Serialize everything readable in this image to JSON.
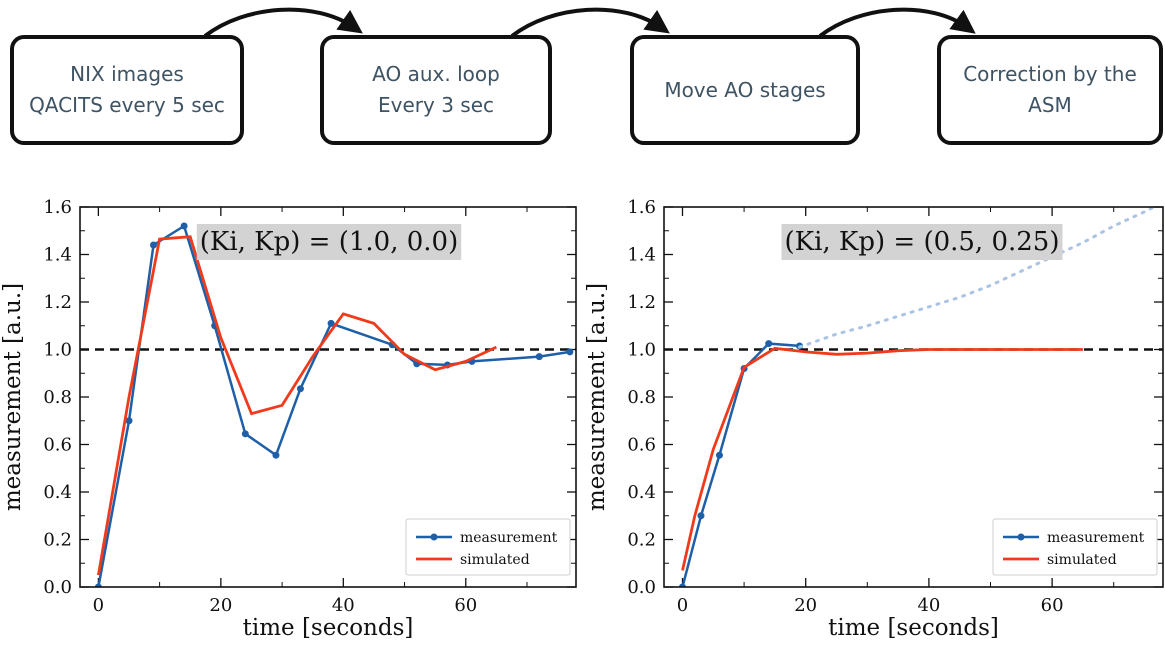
{
  "flow": {
    "steps": [
      {
        "line1": "NIX images",
        "line2": "QACITS every 5 sec"
      },
      {
        "line1": "AO aux. loop",
        "line2": "Every 3 sec"
      },
      {
        "line1": "Move AO stages",
        "line2": ""
      },
      {
        "line1": "Correction by the",
        "line2": "ASM"
      }
    ]
  },
  "colors": {
    "measurement": "#1f5fa8",
    "simulated": "#ef3b1c",
    "reference": "#111111",
    "extrapolation": "#a9c4e4",
    "annotation_bg": "#d3d3d3"
  },
  "chart_data": [
    {
      "type": "line",
      "annotation": "(Ki, Kp) = (1.0, 0.0)",
      "xlabel": "time [seconds]",
      "ylabel": "measurement [a.u.]",
      "xlim": [
        -3,
        78
      ],
      "ylim": [
        0.0,
        1.6
      ],
      "xticks": [
        "0",
        "20",
        "40",
        "60"
      ],
      "yticks": [
        "0.0",
        "0.2",
        "0.4",
        "0.6",
        "0.8",
        "1.0",
        "1.2",
        "1.4",
        "1.6"
      ],
      "reference_line": 1.0,
      "legend": {
        "position": "bottom-right",
        "entries": [
          "measurement",
          "simulated"
        ]
      },
      "series": [
        {
          "name": "measurement",
          "style": "line-marker",
          "x": [
            0,
            5,
            9,
            14,
            19,
            24,
            29,
            33,
            38,
            48,
            52,
            57,
            61,
            72,
            77
          ],
          "y": [
            0.0,
            0.7,
            1.44,
            1.52,
            1.1,
            0.645,
            0.555,
            0.835,
            1.11,
            1.02,
            0.94,
            0.935,
            0.95,
            0.97,
            0.99
          ]
        },
        {
          "name": "simulated",
          "style": "line",
          "x": [
            0,
            5,
            10,
            15,
            20,
            25,
            30,
            35,
            40,
            45,
            50,
            55,
            60,
            65
          ],
          "y": [
            0.05,
            0.8,
            1.465,
            1.475,
            1.05,
            0.73,
            0.765,
            0.97,
            1.15,
            1.11,
            0.98,
            0.915,
            0.95,
            1.01
          ]
        }
      ]
    },
    {
      "type": "line",
      "annotation": "(Ki, Kp) = (0.5, 0.25)",
      "xlabel": "time [seconds]",
      "ylabel": "measurement [a.u.]",
      "xlim": [
        -3,
        78
      ],
      "ylim": [
        0.0,
        1.6
      ],
      "xticks": [
        "0",
        "20",
        "40",
        "60"
      ],
      "yticks": [
        "0.0",
        "0.2",
        "0.4",
        "0.6",
        "0.8",
        "1.0",
        "1.2",
        "1.4",
        "1.6"
      ],
      "reference_line": 1.0,
      "legend": {
        "position": "bottom-right",
        "entries": [
          "measurement",
          "simulated"
        ]
      },
      "series": [
        {
          "name": "measurement",
          "style": "line-marker",
          "x": [
            0,
            3,
            6,
            10,
            14,
            19
          ],
          "y": [
            0.0,
            0.3,
            0.555,
            0.92,
            1.025,
            1.015
          ]
        },
        {
          "name": "simulated",
          "style": "line",
          "x": [
            0,
            2,
            5,
            10,
            15,
            20,
            25,
            30,
            35,
            40,
            45,
            50,
            55,
            60,
            65
          ],
          "y": [
            0.07,
            0.3,
            0.58,
            0.925,
            1.005,
            0.99,
            0.98,
            0.985,
            0.995,
            1.0,
            1.0,
            1.0,
            1.0,
            1.0,
            1.0
          ]
        },
        {
          "name": "",
          "style": "dotted",
          "x": [
            19,
            25,
            30,
            35,
            40,
            45,
            50,
            55,
            60,
            65,
            70,
            75,
            78
          ],
          "y": [
            1.01,
            1.065,
            1.1,
            1.14,
            1.18,
            1.22,
            1.27,
            1.33,
            1.39,
            1.45,
            1.52,
            1.58,
            1.62
          ]
        }
      ]
    }
  ]
}
